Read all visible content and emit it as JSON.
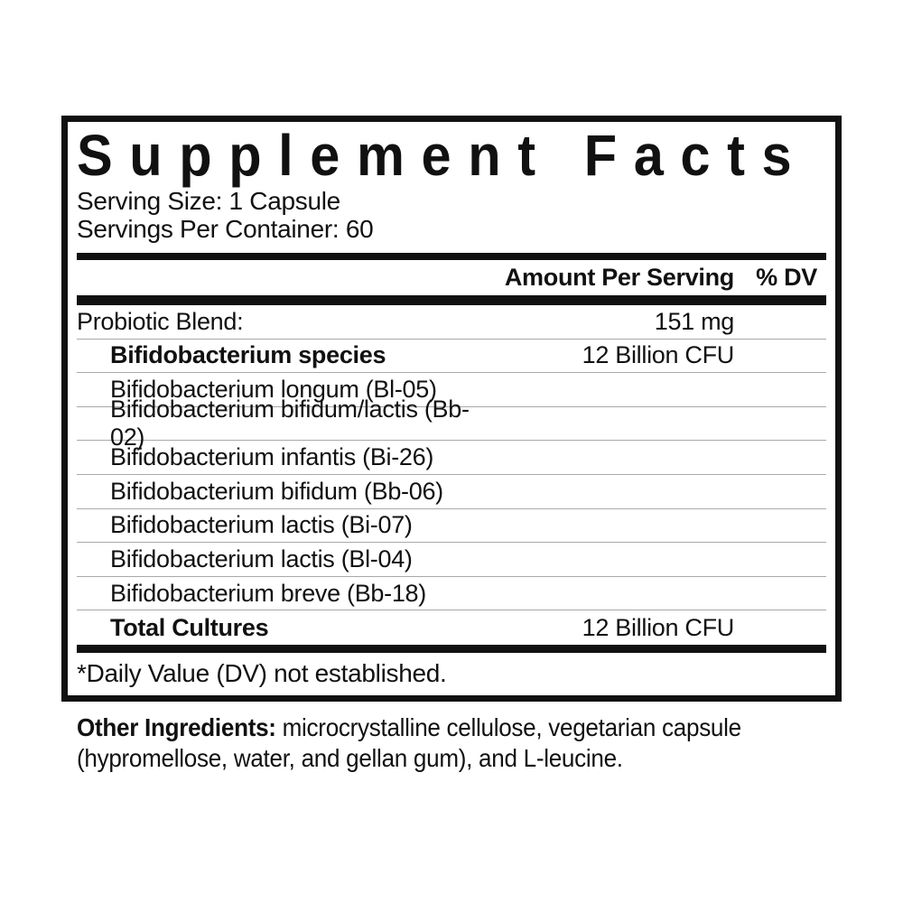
{
  "label": {
    "title": "Supplement Facts",
    "serving_size": "Serving Size: 1 Capsule",
    "servings_per_container": "Servings Per Container: 60",
    "columns": {
      "amount": "Amount Per Serving",
      "dv": "% DV"
    },
    "rows": [
      {
        "name": "Probiotic Blend:",
        "amount": "151 mg",
        "dv": "",
        "bold": false,
        "indent": false
      },
      {
        "name": "Bifidobacterium species",
        "amount": "12 Billion CFU",
        "dv": "",
        "bold": true,
        "indent": true
      },
      {
        "name": "Bifidobacterium longum (Bl-05)",
        "amount": "",
        "dv": "",
        "bold": false,
        "indent": true
      },
      {
        "name": "Bifidobacterium bifidum/lactis (Bb-02)",
        "amount": "",
        "dv": "",
        "bold": false,
        "indent": true
      },
      {
        "name": "Bifidobacterium infantis (Bi-26)",
        "amount": "",
        "dv": "",
        "bold": false,
        "indent": true
      },
      {
        "name": "Bifidobacterium bifidum (Bb-06)",
        "amount": "",
        "dv": "",
        "bold": false,
        "indent": true
      },
      {
        "name": "Bifidobacterium lactis (Bi-07)",
        "amount": "",
        "dv": "",
        "bold": false,
        "indent": true
      },
      {
        "name": "Bifidobacterium lactis (Bl-04)",
        "amount": "",
        "dv": "",
        "bold": false,
        "indent": true
      },
      {
        "name": "Bifidobacterium breve (Bb-18)",
        "amount": "",
        "dv": "",
        "bold": false,
        "indent": true
      },
      {
        "name": "Total Cultures",
        "amount": "12 Billion CFU",
        "dv": "",
        "bold": true,
        "indent": true
      }
    ],
    "footnote": "*Daily Value (DV) not established.",
    "other_ingredients_label": "Other Ingredients:",
    "other_ingredients_text": " microcrystalline cellulose, vegetarian capsule (hypromellose, water, and gellan gum), and L-leucine.",
    "colors": {
      "text": "#111111",
      "rule": "#a9a9a9",
      "background": "#ffffff"
    }
  }
}
